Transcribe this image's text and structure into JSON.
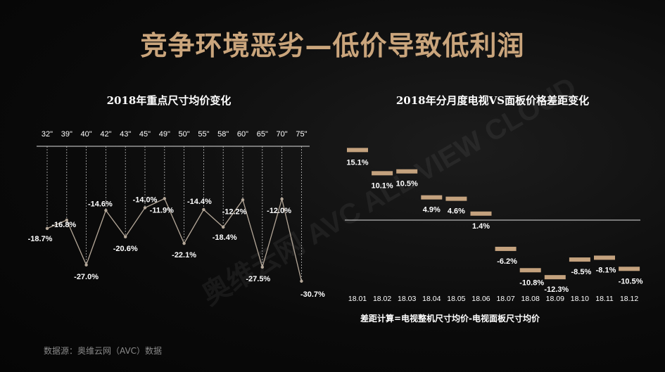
{
  "title": "竞争环境恶劣—低价导致低利润",
  "watermark": "奥维云网 AVC ALL VIEW CLOUD",
  "source": "数据源：奥维云网（AVC）数据",
  "footnote": "差距计算=电视整机尺寸均价-电视面板尺寸均价",
  "colors": {
    "accent": "#c4a27e",
    "line": "#b5a899",
    "text": "#ffffff"
  },
  "chart_data": [
    {
      "type": "line",
      "title": "2018年重点尺寸均价变化",
      "categories": [
        "32\"",
        "39\"",
        "40\"",
        "42\"",
        "43\"",
        "45\"",
        "49\"",
        "50\"",
        "55\"",
        "58\"",
        "60\"",
        "65\"",
        "70\"",
        "75\""
      ],
      "values": [
        -18.7,
        -16.8,
        -27.0,
        -14.6,
        -20.6,
        -14.0,
        -11.9,
        -22.1,
        -14.4,
        -18.4,
        -12.2,
        -27.5,
        -12.0,
        -30.7
      ],
      "labels": [
        "-18.7%",
        "-16.8%",
        "-27.0%",
        "-14.6%",
        "-20.6%",
        "-14.0%",
        "-11.9%",
        "-22.1%",
        "-14.4%",
        "-18.4%",
        "-12.2%",
        "-27.5%",
        "-12.0%",
        "-30.7%"
      ],
      "unit": "%",
      "ylim": [
        -32,
        0
      ]
    },
    {
      "type": "bar",
      "title": "2018年分月度电视VS面板价格差距变化",
      "categories": [
        "18.01",
        "18.02",
        "18.03",
        "18.04",
        "18.05",
        "18.06",
        "18.07",
        "18.08",
        "18.09",
        "18.10",
        "18.11",
        "18.12"
      ],
      "values": [
        15.1,
        10.1,
        10.5,
        4.9,
        4.6,
        1.4,
        -6.2,
        -10.8,
        -12.3,
        -8.5,
        -8.1,
        -10.5
      ],
      "labels": [
        "15.1%",
        "10.1%",
        "10.5%",
        "4.9%",
        "4.6%",
        "1.4%",
        "-6.2%",
        "-10.8%",
        "-12.3%",
        "-8.5%",
        "-8.1%",
        "-10.5%"
      ],
      "unit": "%",
      "ylim": [
        -13,
        16
      ]
    }
  ]
}
